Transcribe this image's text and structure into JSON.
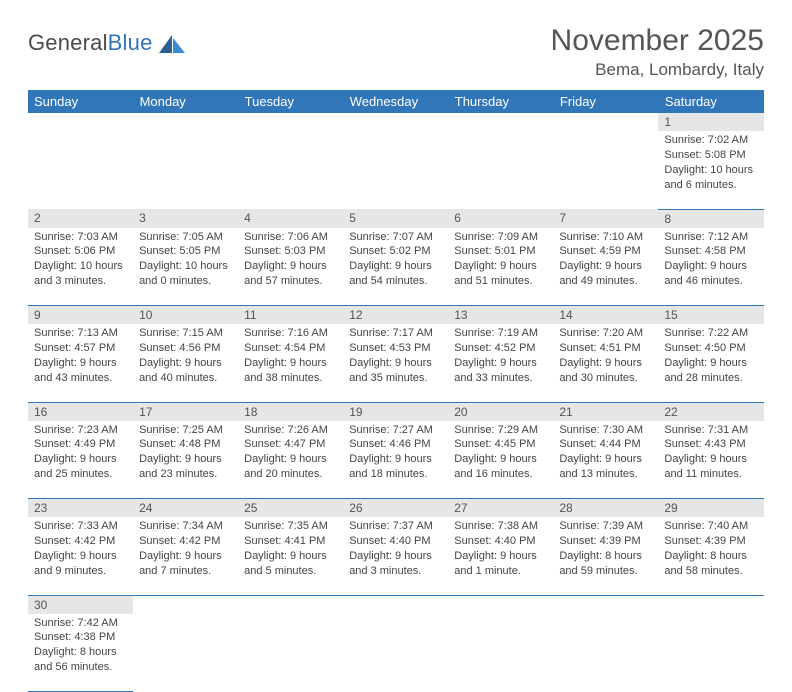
{
  "brand": {
    "name1": "General",
    "name2": "Blue"
  },
  "title": "November 2025",
  "location": "Bema, Lombardy, Italy",
  "colors": {
    "header_bg": "#3176b8",
    "header_fg": "#ffffff",
    "daynum_bg": "#e6e6e6",
    "row_divider": "#3176b8",
    "text": "#444444",
    "title_text": "#555555"
  },
  "typography": {
    "title_fontsize": 30,
    "location_fontsize": 17,
    "dayhead_fontsize": 13,
    "daynum_fontsize": 12,
    "body_fontsize": 11
  },
  "layout": {
    "columns": 7,
    "cell_width_pct": 14.28
  },
  "weekdays": [
    "Sunday",
    "Monday",
    "Tuesday",
    "Wednesday",
    "Thursday",
    "Friday",
    "Saturday"
  ],
  "weeks": [
    [
      null,
      null,
      null,
      null,
      null,
      null,
      {
        "n": "1",
        "sunrise": "Sunrise: 7:02 AM",
        "sunset": "Sunset: 5:08 PM",
        "daylight": "Daylight: 10 hours and 6 minutes."
      }
    ],
    [
      {
        "n": "2",
        "sunrise": "Sunrise: 7:03 AM",
        "sunset": "Sunset: 5:06 PM",
        "daylight": "Daylight: 10 hours and 3 minutes."
      },
      {
        "n": "3",
        "sunrise": "Sunrise: 7:05 AM",
        "sunset": "Sunset: 5:05 PM",
        "daylight": "Daylight: 10 hours and 0 minutes."
      },
      {
        "n": "4",
        "sunrise": "Sunrise: 7:06 AM",
        "sunset": "Sunset: 5:03 PM",
        "daylight": "Daylight: 9 hours and 57 minutes."
      },
      {
        "n": "5",
        "sunrise": "Sunrise: 7:07 AM",
        "sunset": "Sunset: 5:02 PM",
        "daylight": "Daylight: 9 hours and 54 minutes."
      },
      {
        "n": "6",
        "sunrise": "Sunrise: 7:09 AM",
        "sunset": "Sunset: 5:01 PM",
        "daylight": "Daylight: 9 hours and 51 minutes."
      },
      {
        "n": "7",
        "sunrise": "Sunrise: 7:10 AM",
        "sunset": "Sunset: 4:59 PM",
        "daylight": "Daylight: 9 hours and 49 minutes."
      },
      {
        "n": "8",
        "sunrise": "Sunrise: 7:12 AM",
        "sunset": "Sunset: 4:58 PM",
        "daylight": "Daylight: 9 hours and 46 minutes."
      }
    ],
    [
      {
        "n": "9",
        "sunrise": "Sunrise: 7:13 AM",
        "sunset": "Sunset: 4:57 PM",
        "daylight": "Daylight: 9 hours and 43 minutes."
      },
      {
        "n": "10",
        "sunrise": "Sunrise: 7:15 AM",
        "sunset": "Sunset: 4:56 PM",
        "daylight": "Daylight: 9 hours and 40 minutes."
      },
      {
        "n": "11",
        "sunrise": "Sunrise: 7:16 AM",
        "sunset": "Sunset: 4:54 PM",
        "daylight": "Daylight: 9 hours and 38 minutes."
      },
      {
        "n": "12",
        "sunrise": "Sunrise: 7:17 AM",
        "sunset": "Sunset: 4:53 PM",
        "daylight": "Daylight: 9 hours and 35 minutes."
      },
      {
        "n": "13",
        "sunrise": "Sunrise: 7:19 AM",
        "sunset": "Sunset: 4:52 PM",
        "daylight": "Daylight: 9 hours and 33 minutes."
      },
      {
        "n": "14",
        "sunrise": "Sunrise: 7:20 AM",
        "sunset": "Sunset: 4:51 PM",
        "daylight": "Daylight: 9 hours and 30 minutes."
      },
      {
        "n": "15",
        "sunrise": "Sunrise: 7:22 AM",
        "sunset": "Sunset: 4:50 PM",
        "daylight": "Daylight: 9 hours and 28 minutes."
      }
    ],
    [
      {
        "n": "16",
        "sunrise": "Sunrise: 7:23 AM",
        "sunset": "Sunset: 4:49 PM",
        "daylight": "Daylight: 9 hours and 25 minutes."
      },
      {
        "n": "17",
        "sunrise": "Sunrise: 7:25 AM",
        "sunset": "Sunset: 4:48 PM",
        "daylight": "Daylight: 9 hours and 23 minutes."
      },
      {
        "n": "18",
        "sunrise": "Sunrise: 7:26 AM",
        "sunset": "Sunset: 4:47 PM",
        "daylight": "Daylight: 9 hours and 20 minutes."
      },
      {
        "n": "19",
        "sunrise": "Sunrise: 7:27 AM",
        "sunset": "Sunset: 4:46 PM",
        "daylight": "Daylight: 9 hours and 18 minutes."
      },
      {
        "n": "20",
        "sunrise": "Sunrise: 7:29 AM",
        "sunset": "Sunset: 4:45 PM",
        "daylight": "Daylight: 9 hours and 16 minutes."
      },
      {
        "n": "21",
        "sunrise": "Sunrise: 7:30 AM",
        "sunset": "Sunset: 4:44 PM",
        "daylight": "Daylight: 9 hours and 13 minutes."
      },
      {
        "n": "22",
        "sunrise": "Sunrise: 7:31 AM",
        "sunset": "Sunset: 4:43 PM",
        "daylight": "Daylight: 9 hours and 11 minutes."
      }
    ],
    [
      {
        "n": "23",
        "sunrise": "Sunrise: 7:33 AM",
        "sunset": "Sunset: 4:42 PM",
        "daylight": "Daylight: 9 hours and 9 minutes."
      },
      {
        "n": "24",
        "sunrise": "Sunrise: 7:34 AM",
        "sunset": "Sunset: 4:42 PM",
        "daylight": "Daylight: 9 hours and 7 minutes."
      },
      {
        "n": "25",
        "sunrise": "Sunrise: 7:35 AM",
        "sunset": "Sunset: 4:41 PM",
        "daylight": "Daylight: 9 hours and 5 minutes."
      },
      {
        "n": "26",
        "sunrise": "Sunrise: 7:37 AM",
        "sunset": "Sunset: 4:40 PM",
        "daylight": "Daylight: 9 hours and 3 minutes."
      },
      {
        "n": "27",
        "sunrise": "Sunrise: 7:38 AM",
        "sunset": "Sunset: 4:40 PM",
        "daylight": "Daylight: 9 hours and 1 minute."
      },
      {
        "n": "28",
        "sunrise": "Sunrise: 7:39 AM",
        "sunset": "Sunset: 4:39 PM",
        "daylight": "Daylight: 8 hours and 59 minutes."
      },
      {
        "n": "29",
        "sunrise": "Sunrise: 7:40 AM",
        "sunset": "Sunset: 4:39 PM",
        "daylight": "Daylight: 8 hours and 58 minutes."
      }
    ],
    [
      {
        "n": "30",
        "sunrise": "Sunrise: 7:42 AM",
        "sunset": "Sunset: 4:38 PM",
        "daylight": "Daylight: 8 hours and 56 minutes."
      },
      null,
      null,
      null,
      null,
      null,
      null
    ]
  ]
}
